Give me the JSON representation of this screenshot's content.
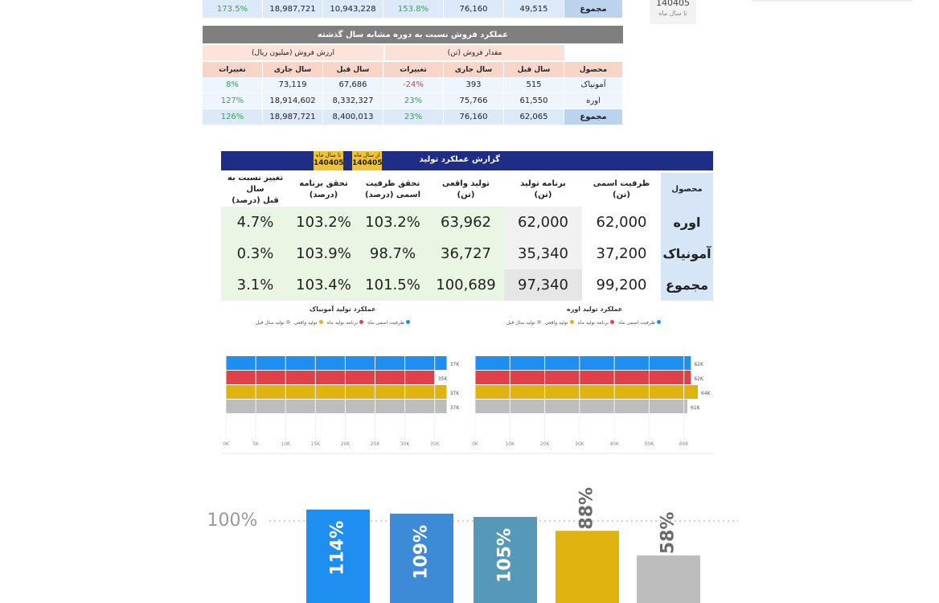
{
  "top_partial": {
    "total_row": {
      "label": "مجموع",
      "v_change": "173.5%",
      "v_current": "18,987,721",
      "v_previous": "10,943,228",
      "q_change": "153.8%",
      "q_current": "76,160",
      "q_previous": "49,515"
    },
    "side_box": {
      "code": "140405",
      "text": "تا سال ماه"
    }
  },
  "sales_comparison": {
    "title": "عملکرد فروش نسبت به دوره مشابه سال گذشته",
    "group_value": "ارزش فروش (میلیون ریال)",
    "group_quantity": "مقدار فروش (تن)",
    "headers": {
      "change": "تغییرات",
      "current": "سال جاری",
      "previous": "سال قبل",
      "product": "محصول"
    },
    "rows": [
      {
        "product": "آمونیاک",
        "q_previous": "515",
        "q_current": "393",
        "q_change": "-24%",
        "v_previous": "67,686",
        "v_current": "73,119",
        "v_change": "8%"
      },
      {
        "product": "اوره",
        "q_previous": "61,550",
        "q_current": "75,766",
        "q_change": "23%",
        "v_previous": "8,332,327",
        "v_current": "18,914,602",
        "v_change": "127%"
      },
      {
        "product": "مجموع",
        "q_previous": "62,065",
        "q_current": "76,160",
        "q_change": "23%",
        "v_previous": "8,400,013",
        "v_current": "18,987,721",
        "v_change": "126%"
      }
    ]
  },
  "production_report": {
    "title": "گزارش عملکرد تولید",
    "box_until": {
      "label": "تا سال ماه",
      "code": "140405"
    },
    "box_from": {
      "label": "از سال ماه",
      "code": "140405"
    },
    "headers": {
      "product": "محصول",
      "nominal": "ظرفیت اسمی\n(تن)",
      "plan": "برنامه تولید\n(تن)",
      "actual": "تولید واقعی\n(تن)",
      "cap_real": "تحقق ظرفیت\nاسمی (درصد)",
      "plan_real": "تحقق برنامه\n(درصد)",
      "yoy": "تغییر نسبت به سال\nقبل (درصد)"
    },
    "rows": [
      {
        "product": "اوره",
        "nominal": "62,000",
        "plan": "62,000",
        "actual": "63,962",
        "cap_real": "103.2%",
        "plan_real": "103.2%",
        "yoy": "4.7%"
      },
      {
        "product": "آمونیاک",
        "nominal": "37,200",
        "plan": "35,340",
        "actual": "36,727",
        "cap_real": "98.7%",
        "plan_real": "103.9%",
        "yoy": "0.3%"
      },
      {
        "product": "مجموع",
        "nominal": "99,200",
        "plan": "97,340",
        "actual": "100,689",
        "cap_real": "101.5%",
        "plan_real": "103.4%",
        "yoy": "3.1%"
      }
    ]
  },
  "colors": {
    "blue": "#1f8ef1",
    "red": "#e0404a",
    "yellow": "#e0b311",
    "grey": "#bdbdbd",
    "teal": "#5598b8",
    "midblue": "#3d8ad6"
  },
  "chart_data": [
    {
      "type": "bar",
      "orientation": "horizontal",
      "title": "عملکرد تولید آمونیاک",
      "legend": [
        "ظرفیت اسمی ماه",
        "برنامه تولید ماه",
        "تولید واقعی",
        "تولید سال قبل"
      ],
      "series": [
        {
          "name": "ظرفیت اسمی ماه",
          "value": 37,
          "label": "37K"
        },
        {
          "name": "برنامه تولید ماه",
          "value": 35,
          "label": "35K"
        },
        {
          "name": "تولید واقعی",
          "value": 37,
          "label": "37K"
        },
        {
          "name": "تولید سال قبل",
          "value": 37,
          "label": "37K"
        }
      ],
      "xticks": [
        "0K",
        "5K",
        "10K",
        "15K",
        "20K",
        "25K",
        "30K",
        "35K"
      ],
      "xlim": [
        0,
        38
      ]
    },
    {
      "type": "bar",
      "orientation": "horizontal",
      "title": "عملکرد تولید اوره",
      "legend": [
        "ظرفیت اسمی ماه",
        "برنامه تولید ماه",
        "تولید واقعی",
        "تولید سال قبل"
      ],
      "series": [
        {
          "name": "ظرفیت اسمی ماه",
          "value": 62,
          "label": "62K"
        },
        {
          "name": "برنامه تولید ماه",
          "value": 62,
          "label": "62K"
        },
        {
          "name": "تولید واقعی",
          "value": 64,
          "label": "64K"
        },
        {
          "name": "تولید سال قبل",
          "value": 61,
          "label": "61K"
        }
      ],
      "xticks": [
        "0K",
        "10K",
        "20K",
        "30K",
        "40K",
        "50K",
        "60K"
      ],
      "xlim": [
        0,
        64
      ]
    },
    {
      "type": "bar",
      "orientation": "vertical",
      "title": "",
      "reference_label": "100%",
      "reference_value": 100,
      "values": [
        114,
        109,
        105,
        88,
        58
      ],
      "labels": [
        "114%",
        "109%",
        "105%",
        "88%",
        "58%"
      ]
    }
  ]
}
